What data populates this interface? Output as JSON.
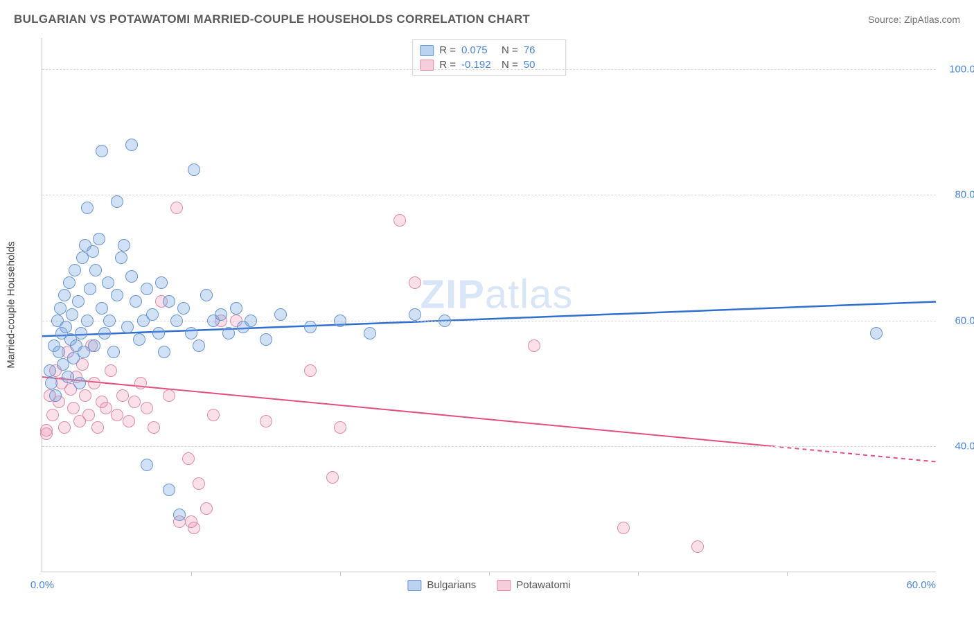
{
  "header": {
    "title": "BULGARIAN VS POTAWATOMI MARRIED-COUPLE HOUSEHOLDS CORRELATION CHART",
    "source": "Source: ZipAtlas.com"
  },
  "watermark": {
    "bold": "ZIP",
    "thin": "atlas"
  },
  "chart": {
    "type": "scatter",
    "ylabel": "Married-couple Households",
    "xlim": [
      0,
      60
    ],
    "ylim": [
      20,
      105
    ],
    "yticks": [
      {
        "v": 40,
        "label": "40.0%"
      },
      {
        "v": 60,
        "label": "60.0%"
      },
      {
        "v": 80,
        "label": "80.0%"
      },
      {
        "v": 100,
        "label": "100.0%"
      }
    ],
    "xticks": [
      {
        "v": 0,
        "label": "0.0%"
      },
      {
        "v": 60,
        "label": "60.0%"
      }
    ],
    "xminor": [
      10,
      20,
      30,
      40,
      50
    ],
    "background_color": "#ffffff",
    "grid_color": "#d8d8d8",
    "axis_color": "#c8c8c8",
    "tick_text_color": "#4a86d8",
    "marker_radius": 9,
    "series": {
      "blue": {
        "name": "Bulgarians",
        "fill": "rgba(120,165,225,0.35)",
        "stroke": "#6a95d0",
        "trend": {
          "y_at_x0": 57.5,
          "y_at_x60": 63.0,
          "color": "#2f6fd0",
          "width": 2.5,
          "dash_after_x": 60
        },
        "stats": {
          "R": "0.075",
          "N": "76"
        },
        "points": [
          [
            0.5,
            52
          ],
          [
            0.6,
            50
          ],
          [
            0.8,
            56
          ],
          [
            0.9,
            48
          ],
          [
            1.0,
            60
          ],
          [
            1.1,
            55
          ],
          [
            1.2,
            62
          ],
          [
            1.3,
            58
          ],
          [
            1.4,
            53
          ],
          [
            1.5,
            64
          ],
          [
            1.6,
            59
          ],
          [
            1.7,
            51
          ],
          [
            1.8,
            66
          ],
          [
            1.9,
            57
          ],
          [
            2.0,
            61
          ],
          [
            2.1,
            54
          ],
          [
            2.2,
            68
          ],
          [
            2.3,
            56
          ],
          [
            2.4,
            63
          ],
          [
            2.5,
            50
          ],
          [
            2.6,
            58
          ],
          [
            2.7,
            70
          ],
          [
            2.8,
            55
          ],
          [
            2.9,
            72
          ],
          [
            3.0,
            60
          ],
          [
            3.0,
            78
          ],
          [
            3.2,
            65
          ],
          [
            3.4,
            71
          ],
          [
            3.5,
            56
          ],
          [
            3.6,
            68
          ],
          [
            3.8,
            73
          ],
          [
            4.0,
            62
          ],
          [
            4.0,
            87
          ],
          [
            4.2,
            58
          ],
          [
            4.4,
            66
          ],
          [
            4.5,
            60
          ],
          [
            4.8,
            55
          ],
          [
            5.0,
            64
          ],
          [
            5.0,
            79
          ],
          [
            5.3,
            70
          ],
          [
            5.5,
            72
          ],
          [
            5.7,
            59
          ],
          [
            6.0,
            67
          ],
          [
            6.0,
            88
          ],
          [
            6.3,
            63
          ],
          [
            6.5,
            57
          ],
          [
            6.8,
            60
          ],
          [
            7.0,
            65
          ],
          [
            7.0,
            37
          ],
          [
            7.4,
            61
          ],
          [
            7.8,
            58
          ],
          [
            8.0,
            66
          ],
          [
            8.2,
            55
          ],
          [
            8.5,
            63
          ],
          [
            8.5,
            33
          ],
          [
            9.0,
            60
          ],
          [
            9.2,
            29
          ],
          [
            9.5,
            62
          ],
          [
            10.0,
            58
          ],
          [
            10.2,
            84
          ],
          [
            10.5,
            56
          ],
          [
            11.0,
            64
          ],
          [
            11.5,
            60
          ],
          [
            12.0,
            61
          ],
          [
            12.5,
            58
          ],
          [
            13.0,
            62
          ],
          [
            13.5,
            59
          ],
          [
            14.0,
            60
          ],
          [
            15.0,
            57
          ],
          [
            16.0,
            61
          ],
          [
            18.0,
            59
          ],
          [
            20.0,
            60
          ],
          [
            22.0,
            58
          ],
          [
            25.0,
            61
          ],
          [
            27.0,
            60
          ],
          [
            56.0,
            58
          ]
        ]
      },
      "pink": {
        "name": "Potawatomi",
        "fill": "rgba(235,145,175,0.28)",
        "stroke": "#e08aa8",
        "trend": {
          "y_at_x0": 51.0,
          "y_at_x60": 37.5,
          "color": "#e24f7d",
          "width": 2,
          "dash_after_x": 49
        },
        "stats": {
          "R": "-0.192",
          "N": "50"
        },
        "points": [
          [
            0.3,
            42
          ],
          [
            0.3,
            42.5
          ],
          [
            0.5,
            48
          ],
          [
            0.7,
            45
          ],
          [
            0.9,
            52
          ],
          [
            1.1,
            47
          ],
          [
            1.3,
            50
          ],
          [
            1.5,
            43
          ],
          [
            1.7,
            55
          ],
          [
            1.9,
            49
          ],
          [
            2.1,
            46
          ],
          [
            2.3,
            51
          ],
          [
            2.5,
            44
          ],
          [
            2.7,
            53
          ],
          [
            2.9,
            48
          ],
          [
            3.1,
            45
          ],
          [
            3.3,
            56
          ],
          [
            3.5,
            50
          ],
          [
            3.7,
            43
          ],
          [
            4.0,
            47
          ],
          [
            4.3,
            46
          ],
          [
            4.6,
            52
          ],
          [
            5.0,
            45
          ],
          [
            5.4,
            48
          ],
          [
            5.8,
            44
          ],
          [
            6.2,
            47
          ],
          [
            6.6,
            50
          ],
          [
            7.0,
            46
          ],
          [
            7.5,
            43
          ],
          [
            8.0,
            63
          ],
          [
            8.5,
            48
          ],
          [
            9.0,
            78
          ],
          [
            9.2,
            28
          ],
          [
            9.8,
            38
          ],
          [
            10.0,
            28
          ],
          [
            10.2,
            27
          ],
          [
            10.5,
            34
          ],
          [
            11.0,
            30
          ],
          [
            11.5,
            45
          ],
          [
            12.0,
            60
          ],
          [
            13.0,
            60
          ],
          [
            15.0,
            44
          ],
          [
            18.0,
            52
          ],
          [
            20.0,
            43
          ],
          [
            19.5,
            35
          ],
          [
            24.0,
            76
          ],
          [
            25.0,
            66
          ],
          [
            33.0,
            56
          ],
          [
            39.0,
            27
          ],
          [
            44.0,
            24
          ]
        ]
      }
    }
  },
  "stats_box": {
    "rows": [
      {
        "swatch": "blue",
        "R": "0.075",
        "N": "76"
      },
      {
        "swatch": "pink",
        "R": "-0.192",
        "N": "50"
      }
    ]
  }
}
